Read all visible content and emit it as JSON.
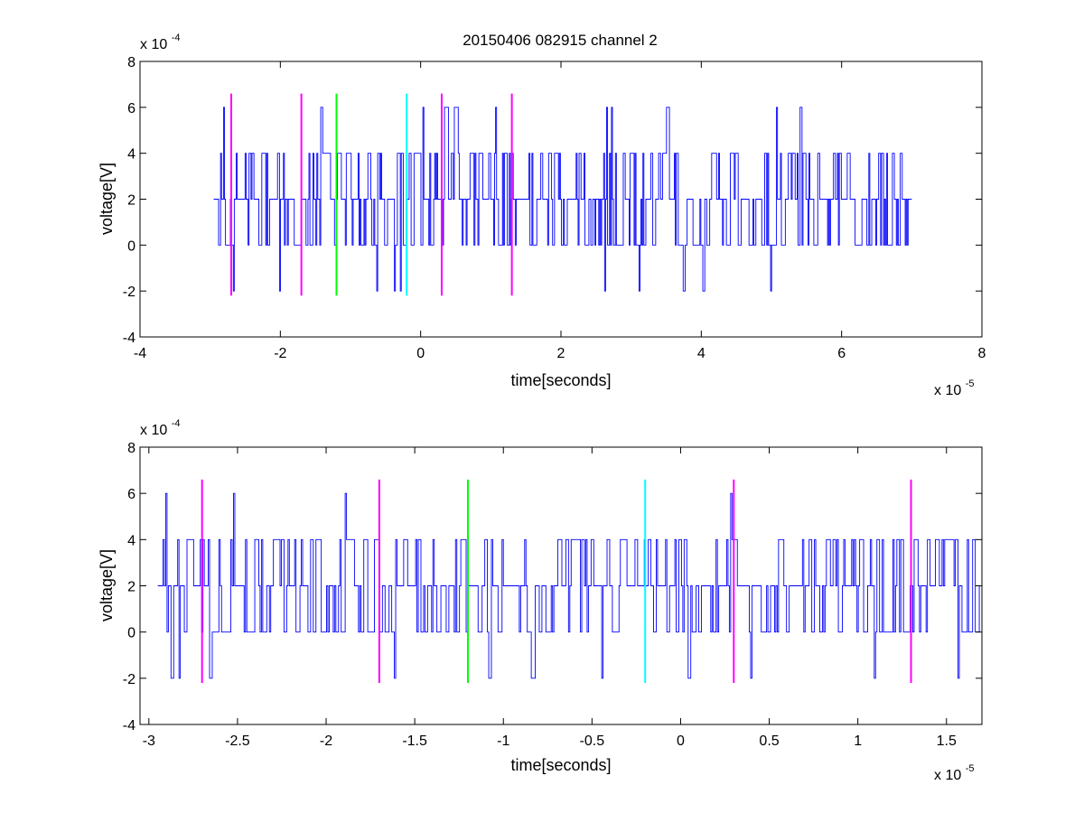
{
  "chart_data": [
    {
      "type": "line",
      "title": "20150406 082915 channel 2",
      "xlabel": "time[seconds]",
      "ylabel": "voltage[V]",
      "x_multiplier_label": "x 10",
      "x_multiplier_exp": "-5",
      "y_multiplier_label": "x 10",
      "y_multiplier_exp": "-4",
      "xlim": [
        -4,
        8
      ],
      "ylim": [
        -4,
        8
      ],
      "xticks": [
        -4,
        -2,
        0,
        2,
        4,
        6,
        8
      ],
      "xtick_labels": [
        "-4",
        "-2",
        "0",
        "2",
        "4",
        "6",
        "8"
      ],
      "yticks": [
        -4,
        -2,
        0,
        2,
        4,
        6,
        8
      ],
      "ytick_labels": [
        "-4",
        "-2",
        "0",
        "2",
        "4",
        "6",
        "8"
      ],
      "grid": false,
      "signal": {
        "color": "#0000ff",
        "x_start": -2.95,
        "x_end": 7.0,
        "levels": [
          -2,
          0,
          2,
          4,
          6
        ],
        "baseline": 2
      },
      "markers": [
        {
          "x": -2.7,
          "color": "#ff00ff",
          "ymin": -2.2,
          "ymax": 6.6
        },
        {
          "x": -1.7,
          "color": "#ff00ff",
          "ymin": -2.2,
          "ymax": 6.6
        },
        {
          "x": -1.2,
          "color": "#00ff00",
          "ymin": -2.2,
          "ymax": 6.6
        },
        {
          "x": -0.2,
          "color": "#00ffff",
          "ymin": -2.2,
          "ymax": 6.6
        },
        {
          "x": 0.3,
          "color": "#ff00ff",
          "ymin": -2.2,
          "ymax": 6.6
        },
        {
          "x": 1.3,
          "color": "#ff00ff",
          "ymin": -2.2,
          "ymax": 6.6
        }
      ]
    },
    {
      "type": "line",
      "title": "",
      "xlabel": "time[seconds]",
      "ylabel": "voltage[V]",
      "x_multiplier_label": "x 10",
      "x_multiplier_exp": "-5",
      "y_multiplier_label": "x 10",
      "y_multiplier_exp": "-4",
      "xlim": [
        -3.05,
        1.7
      ],
      "ylim": [
        -4,
        8
      ],
      "xticks": [
        -3,
        -2.5,
        -2,
        -1.5,
        -1,
        -0.5,
        0,
        0.5,
        1,
        1.5
      ],
      "xtick_labels": [
        "-3",
        "-2.5",
        "-2",
        "-1.5",
        "-1",
        "-0.5",
        "0",
        "0.5",
        "1",
        "1.5"
      ],
      "yticks": [
        -4,
        -2,
        0,
        2,
        4,
        6,
        8
      ],
      "ytick_labels": [
        "-4",
        "-2",
        "0",
        "2",
        "4",
        "6",
        "8"
      ],
      "grid": false,
      "signal": {
        "color": "#0000ff",
        "x_start": -2.95,
        "x_end": 1.7,
        "levels": [
          -2,
          0,
          2,
          4,
          6
        ],
        "baseline": 2
      },
      "markers": [
        {
          "x": -2.7,
          "color": "#ff00ff",
          "ymin": -2.2,
          "ymax": 6.6
        },
        {
          "x": -1.7,
          "color": "#ff00ff",
          "ymin": -2.2,
          "ymax": 6.6
        },
        {
          "x": -1.2,
          "color": "#00ff00",
          "ymin": -2.2,
          "ymax": 6.6
        },
        {
          "x": -0.2,
          "color": "#00ffff",
          "ymin": -2.2,
          "ymax": 6.6
        },
        {
          "x": 0.3,
          "color": "#ff00ff",
          "ymin": -2.2,
          "ymax": 6.6
        },
        {
          "x": 1.3,
          "color": "#ff00ff",
          "ymin": -2.2,
          "ymax": 6.6
        }
      ]
    }
  ]
}
